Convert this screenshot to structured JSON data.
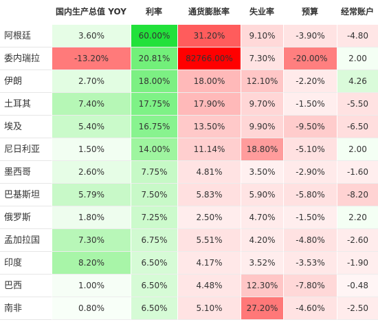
{
  "chart_data": {
    "type": "heatmap",
    "columns": [
      "国内生产总值 YOY",
      "利率",
      "通货膨胀率",
      "失业率",
      "预算",
      "经常账户"
    ],
    "rows": [
      "阿根廷",
      "委内瑞拉",
      "伊朗",
      "土耳其",
      "埃及",
      "尼日利亚",
      "墨西哥",
      "巴基斯坦",
      "俄罗斯",
      "孟加拉国",
      "印度",
      "巴西",
      "南非"
    ],
    "display": [
      [
        "3.60%",
        "60.00%",
        "31.20%",
        "9.10%",
        "-3.90%",
        "-4.80"
      ],
      [
        "-13.20%",
        "20.81%",
        "82766.00%",
        "7.30%",
        "-20.00%",
        "2.00"
      ],
      [
        "2.70%",
        "18.00%",
        "18.00%",
        "12.10%",
        "-2.20%",
        "4.26"
      ],
      [
        "7.40%",
        "17.75%",
        "17.90%",
        "9.70%",
        "-1.50%",
        "-5.50"
      ],
      [
        "5.40%",
        "16.75%",
        "13.50%",
        "9.90%",
        "-9.50%",
        "-6.50"
      ],
      [
        "1.50%",
        "14.00%",
        "11.14%",
        "18.80%",
        "-5.10%",
        "2.00"
      ],
      [
        "2.60%",
        "7.75%",
        "4.81%",
        "3.50%",
        "-2.90%",
        "-1.60"
      ],
      [
        "5.79%",
        "7.50%",
        "5.83%",
        "5.90%",
        "-5.80%",
        "-8.20"
      ],
      [
        "1.80%",
        "7.25%",
        "2.50%",
        "4.70%",
        "-1.50%",
        "2.20"
      ],
      [
        "7.30%",
        "6.75%",
        "5.51%",
        "4.20%",
        "-4.80%",
        "-2.60"
      ],
      [
        "8.20%",
        "6.50%",
        "4.17%",
        "3.52%",
        "-3.53%",
        "-1.90"
      ],
      [
        "1.00%",
        "6.50%",
        "4.48%",
        "12.30%",
        "-7.80%",
        "-0.48"
      ],
      [
        "0.80%",
        "6.50%",
        "5.10%",
        "27.20%",
        "-4.60%",
        "-2.50"
      ]
    ],
    "values": [
      [
        3.6,
        60.0,
        31.2,
        9.1,
        -3.9,
        -4.8
      ],
      [
        -13.2,
        20.81,
        82766.0,
        7.3,
        -20.0,
        2.0
      ],
      [
        2.7,
        18.0,
        18.0,
        12.1,
        -2.2,
        4.26
      ],
      [
        7.4,
        17.75,
        17.9,
        9.7,
        -1.5,
        -5.5
      ],
      [
        5.4,
        16.75,
        13.5,
        9.9,
        -9.5,
        -6.5
      ],
      [
        1.5,
        14.0,
        11.14,
        18.8,
        -5.1,
        2.0
      ],
      [
        2.6,
        7.75,
        4.81,
        3.5,
        -2.9,
        -1.6
      ],
      [
        5.79,
        7.5,
        5.83,
        5.9,
        -5.8,
        -8.2
      ],
      [
        1.8,
        7.25,
        2.5,
        4.7,
        -1.5,
        2.2
      ],
      [
        7.3,
        6.75,
        5.51,
        4.2,
        -4.8,
        -2.6
      ],
      [
        8.2,
        6.5,
        4.17,
        3.52,
        -3.53,
        -1.9
      ],
      [
        1.0,
        6.5,
        4.48,
        12.3,
        -7.8,
        -0.48
      ],
      [
        0.8,
        6.5,
        5.1,
        27.2,
        -4.6,
        -2.5
      ]
    ],
    "cell_colors": [
      [
        "#e6fde6",
        "#22e13b",
        "#ff5c5c",
        "#ffd9d9",
        "#ffe3e3",
        "#ffe6e6"
      ],
      [
        "#ff7a7a",
        "#72f07a",
        "#ff0000",
        "#ffe3e3",
        "#ff7f7f",
        "#f4fff4"
      ],
      [
        "#e2fde2",
        "#7cf083",
        "#ffb9b9",
        "#ffc6c6",
        "#ffeaea",
        "#dafbda"
      ],
      [
        "#b6f7b6",
        "#7ef286",
        "#ffb9b9",
        "#ffd6d6",
        "#ffeeee",
        "#ffe2e2"
      ],
      [
        "#cafaca",
        "#88f38f",
        "#ffc9c9",
        "#ffd6d6",
        "#ffcccc",
        "#ffdede"
      ],
      [
        "#f2fef2",
        "#9ef59f",
        "#ffcfcf",
        "#ff9c9c",
        "#ffe1e1",
        "#f4fff4"
      ],
      [
        "#e6fde6",
        "#c6f9c6",
        "#ffe3e3",
        "#fff0f0",
        "#ffeaea",
        "#ffeeee"
      ],
      [
        "#c8f9c8",
        "#c8f9c8",
        "#ffe0e0",
        "#ffe4e4",
        "#ffe1e1",
        "#ffd3d3"
      ],
      [
        "#eefdee",
        "#ccfacc",
        "#ffeded",
        "#ffebeb",
        "#ffeeee",
        "#f4fff4"
      ],
      [
        "#b8f7b8",
        "#d1fad1",
        "#ffe2e2",
        "#ffeaea",
        "#ffe2e2",
        "#ffecec"
      ],
      [
        "#a8f5a8",
        "#d6fbd6",
        "#ffe8e8",
        "#ffeded",
        "#ffe8e8",
        "#ffeeee"
      ],
      [
        "#f6fef6",
        "#d6fbd6",
        "#ffe6e6",
        "#ffc6c6",
        "#ffd8d8",
        "#fff5f5"
      ],
      [
        "#f8fff8",
        "#d6fbd6",
        "#ffe3e3",
        "#ff7878",
        "#ffe3e3",
        "#ffecec"
      ]
    ]
  }
}
